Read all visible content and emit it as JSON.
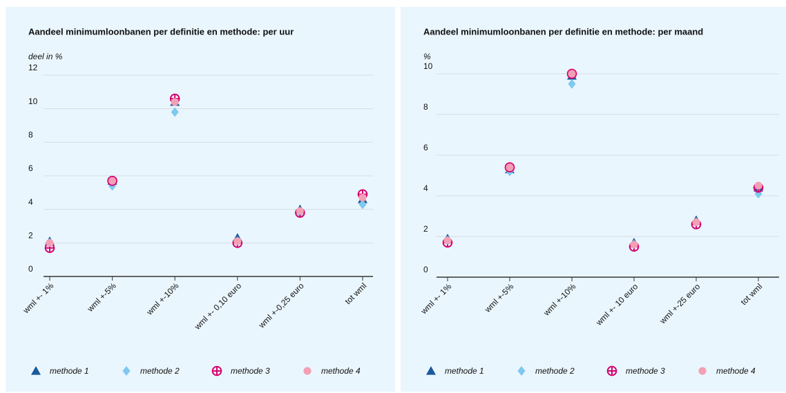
{
  "chart_data": [
    {
      "type": "scatter",
      "title": "Aandeel minimumloonbanen per definitie en methode: per uur",
      "y_label": "deel in %",
      "categories": [
        "wml +- 1%",
        "wml +-5%",
        "wml +-10%",
        "wml +- 0,10 euro",
        "wml +-0,25 euro",
        "tot wml"
      ],
      "ylim": [
        0,
        12
      ],
      "yticks": [
        0,
        2,
        4,
        6,
        8,
        10,
        12
      ],
      "grid": true,
      "legend": "bottom",
      "series": [
        {
          "name": "methode 1",
          "color": "#1a5a9c",
          "marker": "triangle",
          "values": [
            2.1,
            5.7,
            10.4,
            2.3,
            4.0,
            4.6
          ]
        },
        {
          "name": "methode 2",
          "color": "#7fc8f0",
          "marker": "diamond",
          "values": [
            2.0,
            5.4,
            9.8,
            2.1,
            3.8,
            4.3
          ]
        },
        {
          "name": "methode 3",
          "color": "#d6006f",
          "marker": "circle-plus",
          "values": [
            1.7,
            5.7,
            10.6,
            2.0,
            3.8,
            4.9
          ]
        },
        {
          "name": "methode 4",
          "color": "#f3a0b5",
          "marker": "circle",
          "values": [
            2.0,
            5.7,
            10.4,
            2.1,
            3.9,
            4.7
          ]
        }
      ]
    },
    {
      "type": "scatter",
      "title": "Aandeel minimumloonbanen per definitie en methode: per maand",
      "y_label": "%",
      "categories": [
        "wml +- 1%",
        "wml +-5%",
        "wml +-10%",
        "wml +- 10 euro",
        "wml +-25 euro",
        "tot wml"
      ],
      "ylim": [
        0,
        10
      ],
      "yticks": [
        0,
        2,
        4,
        6,
        8,
        10
      ],
      "grid": true,
      "legend": "bottom",
      "series": [
        {
          "name": "methode 1",
          "color": "#1a5a9c",
          "marker": "triangle",
          "values": [
            1.9,
            5.3,
            9.9,
            1.7,
            2.8,
            4.4
          ]
        },
        {
          "name": "methode 2",
          "color": "#7fc8f0",
          "marker": "diamond",
          "values": [
            1.8,
            5.2,
            9.5,
            1.6,
            2.7,
            4.1
          ]
        },
        {
          "name": "methode 3",
          "color": "#d6006f",
          "marker": "circle-plus",
          "values": [
            1.7,
            5.4,
            10.0,
            1.5,
            2.6,
            4.4
          ]
        },
        {
          "name": "methode 4",
          "color": "#f3a0b5",
          "marker": "circle",
          "values": [
            1.8,
            5.4,
            10.0,
            1.6,
            2.7,
            4.5
          ]
        }
      ]
    }
  ]
}
